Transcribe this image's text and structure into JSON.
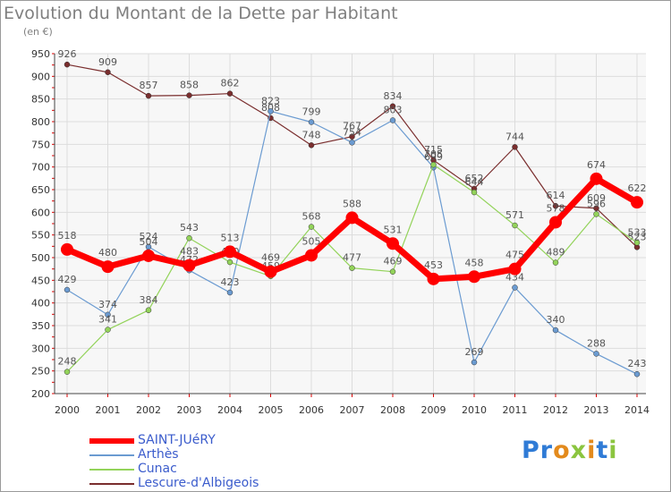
{
  "title": "Evolution du Montant de la Dette par Habitant",
  "unit": "(en €)",
  "brand": "Proxiti",
  "chart_data": {
    "type": "line",
    "x": [
      "2000",
      "2001",
      "2002",
      "2003",
      "2004",
      "2005",
      "2006",
      "2007",
      "2008",
      "2009",
      "2010",
      "2011",
      "2012",
      "2013",
      "2014"
    ],
    "ylim": [
      200,
      950
    ],
    "yticks": [
      200,
      250,
      300,
      350,
      400,
      450,
      500,
      550,
      600,
      650,
      700,
      750,
      800,
      850,
      900,
      950
    ],
    "grid": true,
    "legend_position": "bottom-left",
    "series": [
      {
        "name": "SAINT-JUéRY",
        "color": "#ff0000",
        "values": [
          518,
          480,
          504,
          483,
          513,
          469,
          505,
          588,
          531,
          453,
          458,
          475,
          578,
          674,
          622
        ]
      },
      {
        "name": "Arthès",
        "color": "#6b9bd1",
        "values": [
          429,
          374,
          524,
          472,
          423,
          823,
          799,
          754,
          803,
          699,
          269,
          434,
          340,
          288,
          243
        ]
      },
      {
        "name": "Cunac",
        "color": "#93d35a",
        "values": [
          248,
          341,
          384,
          543,
          490,
          459,
          568,
          477,
          469,
          705,
          644,
          571,
          489,
          596,
          533
        ]
      },
      {
        "name": "Lescure-d'Albigeois",
        "color": "#7a2e2e",
        "values": [
          926,
          909,
          857,
          858,
          862,
          808,
          748,
          767,
          834,
          715,
          652,
          744,
          614,
          609,
          523
        ]
      }
    ]
  }
}
